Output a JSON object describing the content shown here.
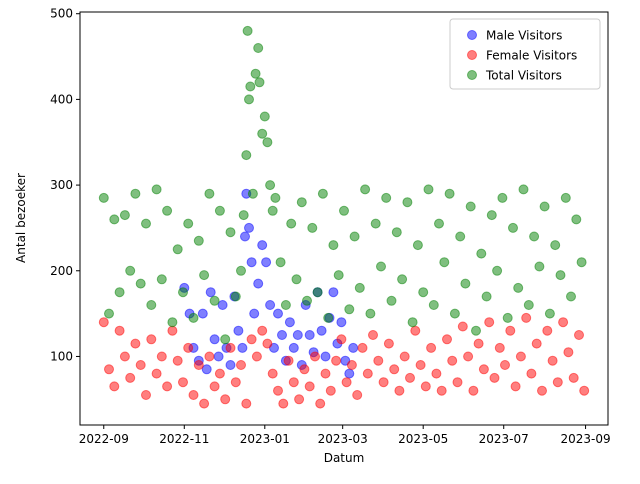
{
  "chart_data": {
    "type": "scatter",
    "title": "",
    "xlabel": "Datum",
    "ylabel": "Antal bezoeker",
    "x_range": [
      "2022-09-01",
      "2023-08-31"
    ],
    "xlim": [
      "2022-08-14",
      "2023-09-18"
    ],
    "ylim": [
      20,
      502
    ],
    "x_ticks": [
      "2022-09",
      "2022-11",
      "2023-01",
      "2023-03",
      "2023-05",
      "2023-07",
      "2023-09"
    ],
    "y_ticks": [
      100,
      200,
      300,
      400,
      500
    ],
    "legend_position": "top-right",
    "grid": false,
    "marker_alpha": 0.5,
    "series": [
      {
        "name": "Male Visitors",
        "color": "#0000ff",
        "points": [
          [
            "2022-11-01",
            180
          ],
          [
            "2022-11-05",
            150
          ],
          [
            "2022-11-08",
            110
          ],
          [
            "2022-11-12",
            95
          ],
          [
            "2022-11-15",
            150
          ],
          [
            "2022-11-18",
            85
          ],
          [
            "2022-11-21",
            175
          ],
          [
            "2022-11-24",
            120
          ],
          [
            "2022-11-27",
            100
          ],
          [
            "2022-11-30",
            160
          ],
          [
            "2022-12-03",
            110
          ],
          [
            "2022-12-06",
            90
          ],
          [
            "2022-12-09",
            170
          ],
          [
            "2022-12-12",
            130
          ],
          [
            "2022-12-15",
            110
          ],
          [
            "2022-12-17",
            240
          ],
          [
            "2022-12-18",
            290
          ],
          [
            "2022-12-20",
            250
          ],
          [
            "2022-12-22",
            210
          ],
          [
            "2022-12-24",
            150
          ],
          [
            "2022-12-27",
            185
          ],
          [
            "2022-12-30",
            230
          ],
          [
            "2023-01-02",
            210
          ],
          [
            "2023-01-05",
            160
          ],
          [
            "2023-01-08",
            110
          ],
          [
            "2023-01-11",
            150
          ],
          [
            "2023-01-14",
            125
          ],
          [
            "2023-01-17",
            95
          ],
          [
            "2023-01-20",
            140
          ],
          [
            "2023-01-23",
            110
          ],
          [
            "2023-01-26",
            125
          ],
          [
            "2023-01-29",
            90
          ],
          [
            "2023-02-01",
            160
          ],
          [
            "2023-02-04",
            125
          ],
          [
            "2023-02-07",
            105
          ],
          [
            "2023-02-10",
            175
          ],
          [
            "2023-02-13",
            130
          ],
          [
            "2023-02-16",
            100
          ],
          [
            "2023-02-19",
            145
          ],
          [
            "2023-02-22",
            175
          ],
          [
            "2023-02-25",
            115
          ],
          [
            "2023-02-28",
            140
          ],
          [
            "2023-03-03",
            95
          ],
          [
            "2023-03-06",
            80
          ],
          [
            "2023-03-09",
            110
          ]
        ]
      },
      {
        "name": "Female Visitors",
        "color": "#ff0000",
        "points": [
          [
            "2022-09-01",
            140
          ],
          [
            "2022-09-05",
            85
          ],
          [
            "2022-09-09",
            65
          ],
          [
            "2022-09-13",
            130
          ],
          [
            "2022-09-17",
            100
          ],
          [
            "2022-09-21",
            75
          ],
          [
            "2022-09-25",
            115
          ],
          [
            "2022-09-29",
            90
          ],
          [
            "2022-10-03",
            55
          ],
          [
            "2022-10-07",
            120
          ],
          [
            "2022-10-11",
            80
          ],
          [
            "2022-10-15",
            100
          ],
          [
            "2022-10-19",
            65
          ],
          [
            "2022-10-23",
            130
          ],
          [
            "2022-10-27",
            95
          ],
          [
            "2022-10-31",
            70
          ],
          [
            "2022-11-04",
            110
          ],
          [
            "2022-11-08",
            55
          ],
          [
            "2022-11-12",
            90
          ],
          [
            "2022-11-16",
            45
          ],
          [
            "2022-11-20",
            100
          ],
          [
            "2022-11-24",
            65
          ],
          [
            "2022-11-28",
            80
          ],
          [
            "2022-12-02",
            50
          ],
          [
            "2022-12-06",
            110
          ],
          [
            "2022-12-10",
            70
          ],
          [
            "2022-12-14",
            90
          ],
          [
            "2022-12-18",
            45
          ],
          [
            "2022-12-22",
            120
          ],
          [
            "2022-12-26",
            100
          ],
          [
            "2022-12-30",
            130
          ],
          [
            "2023-01-03",
            115
          ],
          [
            "2023-01-07",
            80
          ],
          [
            "2023-01-11",
            60
          ],
          [
            "2023-01-15",
            45
          ],
          [
            "2023-01-19",
            95
          ],
          [
            "2023-01-23",
            70
          ],
          [
            "2023-01-27",
            50
          ],
          [
            "2023-01-31",
            85
          ],
          [
            "2023-02-04",
            65
          ],
          [
            "2023-02-08",
            100
          ],
          [
            "2023-02-12",
            45
          ],
          [
            "2023-02-16",
            80
          ],
          [
            "2023-02-20",
            60
          ],
          [
            "2023-02-24",
            95
          ],
          [
            "2023-02-28",
            120
          ],
          [
            "2023-03-04",
            70
          ],
          [
            "2023-03-08",
            90
          ],
          [
            "2023-03-12",
            55
          ],
          [
            "2023-03-16",
            110
          ],
          [
            "2023-03-20",
            80
          ],
          [
            "2023-03-24",
            125
          ],
          [
            "2023-03-28",
            95
          ],
          [
            "2023-04-01",
            70
          ],
          [
            "2023-04-05",
            115
          ],
          [
            "2023-04-09",
            85
          ],
          [
            "2023-04-13",
            60
          ],
          [
            "2023-04-17",
            100
          ],
          [
            "2023-04-21",
            75
          ],
          [
            "2023-04-25",
            130
          ],
          [
            "2023-04-29",
            90
          ],
          [
            "2023-05-03",
            65
          ],
          [
            "2023-05-07",
            110
          ],
          [
            "2023-05-11",
            80
          ],
          [
            "2023-05-15",
            60
          ],
          [
            "2023-05-19",
            120
          ],
          [
            "2023-05-23",
            95
          ],
          [
            "2023-05-27",
            70
          ],
          [
            "2023-05-31",
            135
          ],
          [
            "2023-06-04",
            100
          ],
          [
            "2023-06-08",
            60
          ],
          [
            "2023-06-12",
            115
          ],
          [
            "2023-06-16",
            85
          ],
          [
            "2023-06-20",
            140
          ],
          [
            "2023-06-24",
            75
          ],
          [
            "2023-06-28",
            110
          ],
          [
            "2023-07-02",
            90
          ],
          [
            "2023-07-06",
            130
          ],
          [
            "2023-07-10",
            65
          ],
          [
            "2023-07-14",
            100
          ],
          [
            "2023-07-18",
            145
          ],
          [
            "2023-07-22",
            80
          ],
          [
            "2023-07-26",
            115
          ],
          [
            "2023-07-30",
            60
          ],
          [
            "2023-08-03",
            130
          ],
          [
            "2023-08-07",
            95
          ],
          [
            "2023-08-11",
            70
          ],
          [
            "2023-08-15",
            140
          ],
          [
            "2023-08-19",
            105
          ],
          [
            "2023-08-23",
            75
          ],
          [
            "2023-08-27",
            125
          ],
          [
            "2023-08-31",
            60
          ]
        ]
      },
      {
        "name": "Total Visitors",
        "color": "#008000",
        "points": [
          [
            "2022-09-01",
            285
          ],
          [
            "2022-09-05",
            150
          ],
          [
            "2022-09-09",
            260
          ],
          [
            "2022-09-13",
            175
          ],
          [
            "2022-09-17",
            265
          ],
          [
            "2022-09-21",
            200
          ],
          [
            "2022-09-25",
            290
          ],
          [
            "2022-09-29",
            185
          ],
          [
            "2022-10-03",
            255
          ],
          [
            "2022-10-07",
            160
          ],
          [
            "2022-10-11",
            295
          ],
          [
            "2022-10-15",
            190
          ],
          [
            "2022-10-19",
            270
          ],
          [
            "2022-10-23",
            140
          ],
          [
            "2022-10-27",
            225
          ],
          [
            "2022-10-31",
            175
          ],
          [
            "2022-11-04",
            255
          ],
          [
            "2022-11-08",
            145
          ],
          [
            "2022-11-12",
            235
          ],
          [
            "2022-11-16",
            195
          ],
          [
            "2022-11-20",
            290
          ],
          [
            "2022-11-24",
            165
          ],
          [
            "2022-11-28",
            270
          ],
          [
            "2022-12-02",
            120
          ],
          [
            "2022-12-06",
            245
          ],
          [
            "2022-12-10",
            170
          ],
          [
            "2022-12-14",
            200
          ],
          [
            "2022-12-16",
            265
          ],
          [
            "2022-12-18",
            335
          ],
          [
            "2022-12-19",
            480
          ],
          [
            "2022-12-20",
            400
          ],
          [
            "2022-12-21",
            415
          ],
          [
            "2022-12-23",
            290
          ],
          [
            "2022-12-25",
            430
          ],
          [
            "2022-12-27",
            460
          ],
          [
            "2022-12-28",
            420
          ],
          [
            "2022-12-30",
            360
          ],
          [
            "2023-01-01",
            380
          ],
          [
            "2023-01-03",
            350
          ],
          [
            "2023-01-05",
            300
          ],
          [
            "2023-01-07",
            270
          ],
          [
            "2023-01-09",
            285
          ],
          [
            "2023-01-13",
            210
          ],
          [
            "2023-01-17",
            160
          ],
          [
            "2023-01-21",
            255
          ],
          [
            "2023-01-25",
            190
          ],
          [
            "2023-01-29",
            280
          ],
          [
            "2023-02-02",
            165
          ],
          [
            "2023-02-06",
            250
          ],
          [
            "2023-02-10",
            175
          ],
          [
            "2023-02-14",
            290
          ],
          [
            "2023-02-18",
            145
          ],
          [
            "2023-02-22",
            230
          ],
          [
            "2023-02-26",
            195
          ],
          [
            "2023-03-02",
            270
          ],
          [
            "2023-03-06",
            155
          ],
          [
            "2023-03-10",
            240
          ],
          [
            "2023-03-14",
            180
          ],
          [
            "2023-03-18",
            295
          ],
          [
            "2023-03-22",
            150
          ],
          [
            "2023-03-26",
            255
          ],
          [
            "2023-03-30",
            205
          ],
          [
            "2023-04-03",
            285
          ],
          [
            "2023-04-07",
            165
          ],
          [
            "2023-04-11",
            245
          ],
          [
            "2023-04-15",
            190
          ],
          [
            "2023-04-19",
            280
          ],
          [
            "2023-04-23",
            140
          ],
          [
            "2023-04-27",
            230
          ],
          [
            "2023-05-01",
            175
          ],
          [
            "2023-05-05",
            295
          ],
          [
            "2023-05-09",
            160
          ],
          [
            "2023-05-13",
            255
          ],
          [
            "2023-05-17",
            210
          ],
          [
            "2023-05-21",
            290
          ],
          [
            "2023-05-25",
            150
          ],
          [
            "2023-05-29",
            240
          ],
          [
            "2023-06-02",
            185
          ],
          [
            "2023-06-06",
            275
          ],
          [
            "2023-06-10",
            130
          ],
          [
            "2023-06-14",
            220
          ],
          [
            "2023-06-18",
            170
          ],
          [
            "2023-06-22",
            265
          ],
          [
            "2023-06-26",
            200
          ],
          [
            "2023-06-30",
            285
          ],
          [
            "2023-07-04",
            145
          ],
          [
            "2023-07-08",
            250
          ],
          [
            "2023-07-12",
            180
          ],
          [
            "2023-07-16",
            295
          ],
          [
            "2023-07-20",
            160
          ],
          [
            "2023-07-24",
            240
          ],
          [
            "2023-07-28",
            205
          ],
          [
            "2023-08-01",
            275
          ],
          [
            "2023-08-05",
            150
          ],
          [
            "2023-08-09",
            230
          ],
          [
            "2023-08-13",
            195
          ],
          [
            "2023-08-17",
            285
          ],
          [
            "2023-08-21",
            170
          ],
          [
            "2023-08-25",
            260
          ],
          [
            "2023-08-29",
            210
          ]
        ]
      }
    ]
  }
}
